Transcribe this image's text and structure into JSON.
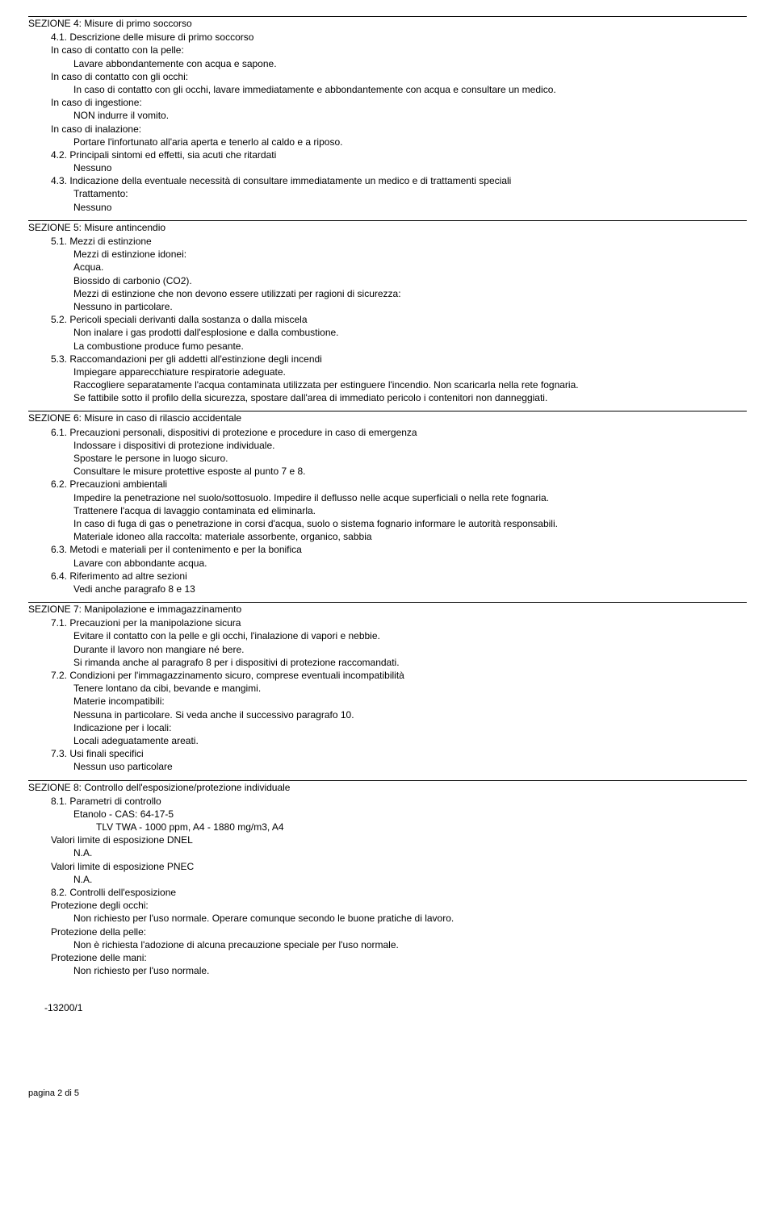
{
  "section4": {
    "title": "SEZIONE 4: Misure di primo soccorso",
    "s41": "4.1. Descrizione delle misure di primo soccorso",
    "s41_skin_h": "In caso di contatto con la pelle:",
    "s41_skin_t": "Lavare abbondantemente con acqua e sapone.",
    "s41_eyes_h": "In caso di contatto con gli occhi:",
    "s41_eyes_t": "In caso di contatto con gli occhi, lavare immediatamente e abbondantemente con acqua e consultare un medico.",
    "s41_ing_h": "In caso di ingestione:",
    "s41_ing_t": "NON indurre il vomito.",
    "s41_inh_h": "In caso di inalazione:",
    "s41_inh_t": "Portare l'infortunato all'aria aperta e tenerlo al caldo e a riposo.",
    "s42": "4.2. Principali sintomi ed effetti, sia acuti che ritardati",
    "s42_t": "Nessuno",
    "s43": "4.3. Indicazione della eventuale necessità di consultare immediatamente un medico e di trattamenti speciali",
    "s43_h": "Trattamento:",
    "s43_t": "Nessuno"
  },
  "section5": {
    "title": "SEZIONE 5: Misure antincendio",
    "s51": "5.1. Mezzi di estinzione",
    "s51_h1": "Mezzi di estinzione idonei:",
    "s51_t1": "Acqua.",
    "s51_t2": "Biossido di carbonio (CO2).",
    "s51_h2": "Mezzi di estinzione che non devono essere utilizzati per ragioni di sicurezza:",
    "s51_t3": "Nessuno in particolare.",
    "s52": "5.2. Pericoli speciali derivanti dalla sostanza o dalla miscela",
    "s52_t1": "Non inalare i gas prodotti dall'esplosione e dalla combustione.",
    "s52_t2": "La combustione produce fumo pesante.",
    "s53": "5.3. Raccomandazioni per gli addetti all'estinzione degli incendi",
    "s53_t1": "Impiegare apparecchiature respiratorie adeguate.",
    "s53_t2": "Raccogliere separatamente l'acqua contaminata utilizzata per estinguere l'incendio. Non scaricarla nella rete fognaria.",
    "s53_t3": "Se fattibile sotto il profilo della sicurezza, spostare dall'area di immediato pericolo i contenitori non danneggiati."
  },
  "section6": {
    "title": "SEZIONE 6: Misure in caso di rilascio accidentale",
    "s61": "6.1. Precauzioni personali, dispositivi di protezione e procedure in caso di emergenza",
    "s61_t1": "Indossare i dispositivi di protezione individuale.",
    "s61_t2": "Spostare le persone in luogo sicuro.",
    "s61_t3": "Consultare le misure protettive esposte al punto 7 e 8.",
    "s62": "6.2. Precauzioni ambientali",
    "s62_t1": "Impedire la penetrazione nel suolo/sottosuolo. Impedire il deflusso nelle acque superficiali o nella rete fognaria.",
    "s62_t2": "Trattenere l'acqua di lavaggio contaminata ed eliminarla.",
    "s62_t3": "In caso di fuga di gas o penetrazione in corsi d'acqua, suolo o sistema fognario informare le autorità responsabili.",
    "s62_t4": "Materiale idoneo alla raccolta: materiale assorbente, organico, sabbia",
    "s63": "6.3. Metodi e materiali per il contenimento e per la bonifica",
    "s63_t1": "Lavare con abbondante acqua.",
    "s64": "6.4. Riferimento ad altre sezioni",
    "s64_t1": "Vedi anche paragrafo 8 e 13"
  },
  "section7": {
    "title": "SEZIONE 7: Manipolazione e immagazzinamento",
    "s71": "7.1. Precauzioni per la manipolazione sicura",
    "s71_t1": "Evitare il contatto con la pelle e gli occhi, l'inalazione di vapori e nebbie.",
    "s71_t2": "Durante il lavoro non mangiare né bere.",
    "s71_t3": "Si rimanda anche al paragrafo 8 per i dispositivi di protezione raccomandati.",
    "s72": "7.2. Condizioni per l'immagazzinamento sicuro, comprese eventuali incompatibilità",
    "s72_t1": "Tenere lontano da cibi, bevande e mangimi.",
    "s72_t2": "Materie incompatibili:",
    "s72_t3": "Nessuna in particolare. Si veda anche il successivo paragrafo 10.",
    "s72_t4": "Indicazione per i locali:",
    "s72_t5": "Locali adeguatamente areati.",
    "s73": "7.3. Usi finali specifici",
    "s73_t1": "Nessun uso particolare"
  },
  "section8": {
    "title": "SEZIONE 8: Controllo dell'esposizione/protezione individuale",
    "s81": "8.1. Parametri di controllo",
    "s81_t1": "Etanolo - CAS: 64-17-5",
    "s81_t2": "TLV TWA - 1000 ppm, A4 - 1880 mg/m3, A4",
    "s81_t3": "Valori limite di esposizione DNEL",
    "s81_t4": "N.A.",
    "s81_t5": "Valori limite di esposizione PNEC",
    "s81_t6": "N.A.",
    "s82": "8.2. Controlli dell'esposizione",
    "s82_h1": "Protezione degli occhi:",
    "s82_t1": "Non richiesto per l'uso normale. Operare comunque secondo le buone pratiche di lavoro.",
    "s82_h2": "Protezione della pelle:",
    "s82_t2": "Non è richiesta l'adozione di alcuna precauzione speciale per l'uso normale.",
    "s82_h3": "Protezione delle mani:",
    "s82_t3": "Non richiesto per l'uso normale."
  },
  "footer": {
    "code": "-13200/1",
    "page": "pagina 2 di 5"
  }
}
